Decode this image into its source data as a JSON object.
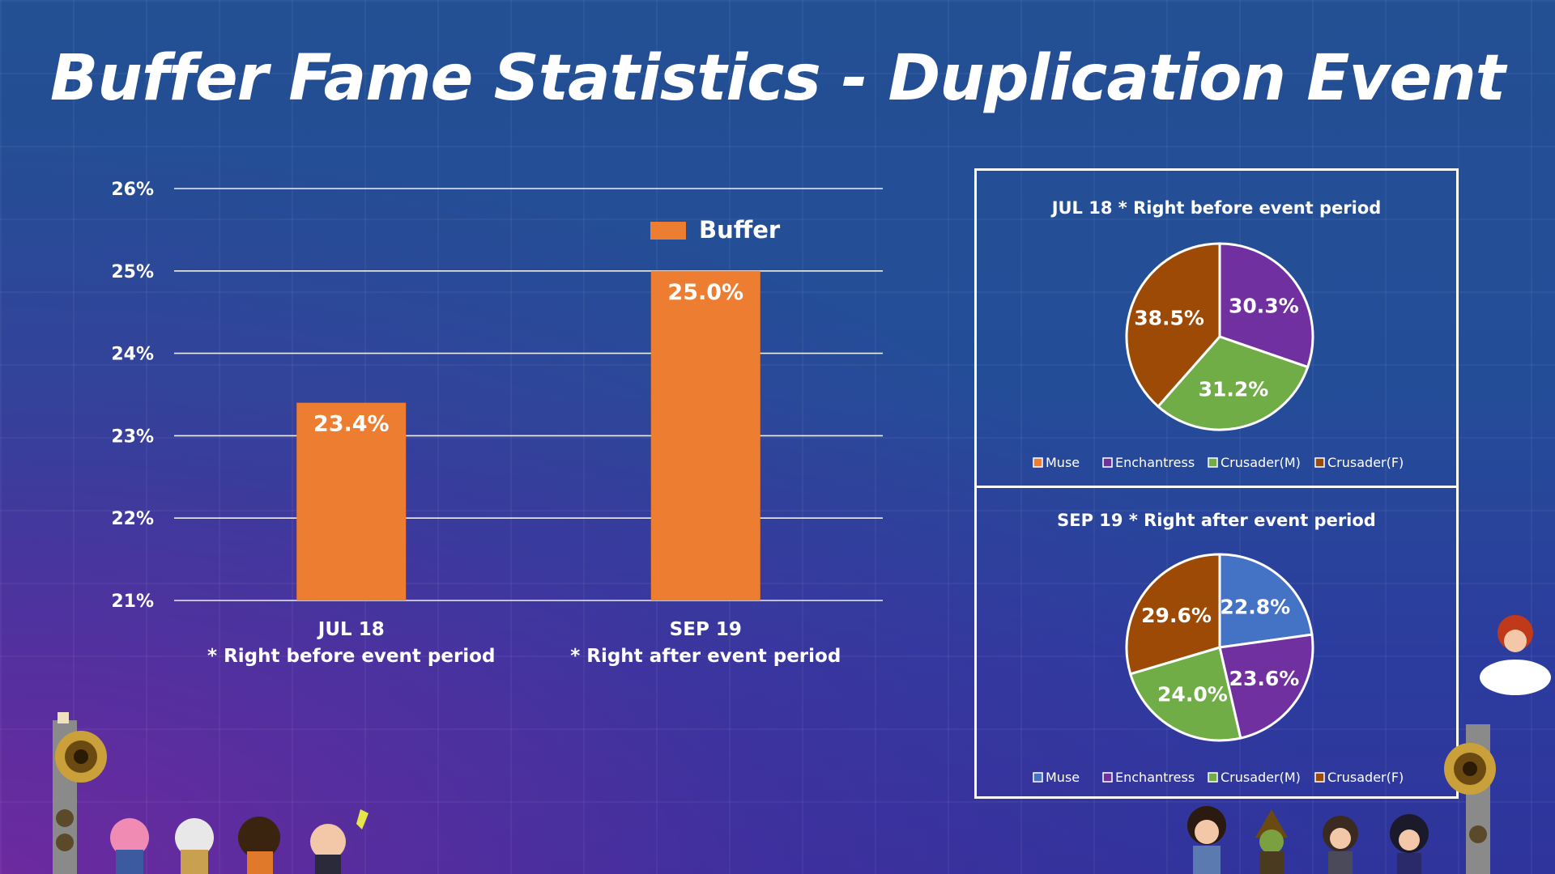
{
  "page": {
    "title": "Buffer Fame Statistics - Duplication Event"
  },
  "colors": {
    "bar": "#ed7d31",
    "muse": "#ed7d31",
    "muse_alt": "#4472c4",
    "enchantress": "#7030a0",
    "crusader_m": "#70ad47",
    "crusader_f": "#9c4a06",
    "grid": "#ffffff"
  },
  "chart_data": [
    {
      "type": "bar",
      "legend": [
        "Buffer"
      ],
      "legend_position": "top-right",
      "categories": [
        {
          "line1": "JUL 18",
          "line2": "* Right before event period"
        },
        {
          "line1": "SEP 19",
          "line2": "* Right after event period"
        }
      ],
      "series": [
        {
          "name": "Buffer",
          "values": [
            23.4,
            25.0
          ],
          "labels": [
            "23.4%",
            "25.0%"
          ]
        }
      ],
      "ylim": [
        21,
        26
      ],
      "yticks": [
        "21%",
        "22%",
        "23%",
        "24%",
        "25%",
        "26%"
      ],
      "grid": true
    },
    {
      "type": "pie",
      "title": "JUL 18 * Right before event period",
      "legend": [
        "Muse",
        "Enchantress",
        "Crusader(M)",
        "Crusader(F)"
      ],
      "legend_position": "bottom",
      "slices": [
        {
          "name": "Enchantress",
          "value": 30.3,
          "label": "30.3%",
          "color": "#7030a0"
        },
        {
          "name": "Crusader(M)",
          "value": 31.2,
          "label": "31.2%",
          "color": "#70ad47"
        },
        {
          "name": "Crusader(F)",
          "value": 38.5,
          "label": "38.5%",
          "color": "#9c4a06"
        }
      ],
      "legend_colors": [
        "#ed7d31",
        "#7030a0",
        "#70ad47",
        "#9c4a06"
      ]
    },
    {
      "type": "pie",
      "title": "SEP 19 * Right after event period",
      "legend": [
        "Muse",
        "Enchantress",
        "Crusader(M)",
        "Crusader(F)"
      ],
      "legend_position": "bottom",
      "slices": [
        {
          "name": "Muse",
          "value": 22.8,
          "label": "22.8%",
          "color": "#4472c4"
        },
        {
          "name": "Enchantress",
          "value": 23.6,
          "label": "23.6%",
          "color": "#7030a0"
        },
        {
          "name": "Crusader(M)",
          "value": 24.0,
          "label": "24.0%",
          "color": "#70ad47"
        },
        {
          "name": "Crusader(F)",
          "value": 29.6,
          "label": "29.6%",
          "color": "#9c4a06"
        }
      ],
      "legend_colors": [
        "#4472c4",
        "#7030a0",
        "#70ad47",
        "#9c4a06"
      ]
    }
  ],
  "decorations": [
    "pixel-speaker-icon",
    "pixel-character-icon",
    "pixel-cloud-icon"
  ]
}
